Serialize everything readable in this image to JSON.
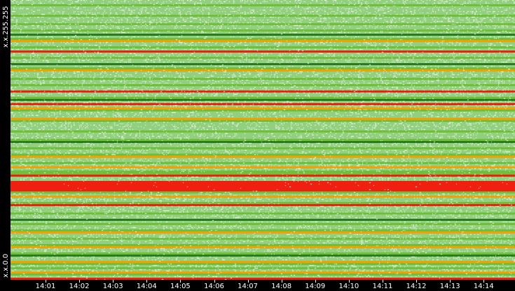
{
  "chart_data": {
    "type": "heatmap",
    "title": "",
    "y_labels": {
      "top": "x.x.255.255",
      "bottom": "x.x.0.0"
    },
    "x_tick_labels": [
      "14:01",
      "14:02",
      "14:03",
      "14:04",
      "14:05",
      "14:06",
      "14:07",
      "14:08",
      "14:09",
      "14:10",
      "14:11",
      "14:12",
      "14:13",
      "14:14"
    ],
    "x_range": [
      "14:00",
      "14:15"
    ],
    "level_colors": {
      "0": "#92d07f",
      "1": "#6fbf3a",
      "2": "#f5a000",
      "3": "#f02010",
      "4": "#2a7a20"
    },
    "row_levels_top_to_bottom": [
      0,
      0,
      1,
      0,
      0,
      0,
      0,
      1,
      0,
      0,
      0,
      1,
      0,
      0,
      1,
      0,
      4,
      0,
      1,
      2,
      0,
      0,
      1,
      0,
      3,
      0,
      0,
      1,
      0,
      0,
      4,
      0,
      1,
      2,
      0,
      0,
      0,
      1,
      0,
      0,
      1,
      0,
      0,
      3,
      0,
      0,
      1,
      4,
      0,
      3,
      0,
      2,
      1,
      0,
      0,
      0,
      2,
      1,
      0,
      0,
      0,
      0,
      1,
      0,
      0,
      0,
      1,
      4,
      0,
      0,
      1,
      0,
      0,
      1,
      2,
      0,
      0,
      1,
      0,
      2,
      0,
      1,
      1,
      3,
      0,
      0,
      3,
      3,
      3,
      3,
      3,
      1,
      0,
      2,
      0,
      0,
      1,
      3,
      0,
      0,
      0,
      1,
      0,
      0,
      4,
      0,
      1,
      0,
      0,
      1,
      2,
      0,
      0,
      1,
      0,
      0,
      1,
      2,
      0,
      0,
      1,
      4,
      0,
      0,
      2,
      1,
      0,
      1,
      0,
      2,
      1,
      0,
      3
    ],
    "grid": false,
    "legend": "none"
  }
}
